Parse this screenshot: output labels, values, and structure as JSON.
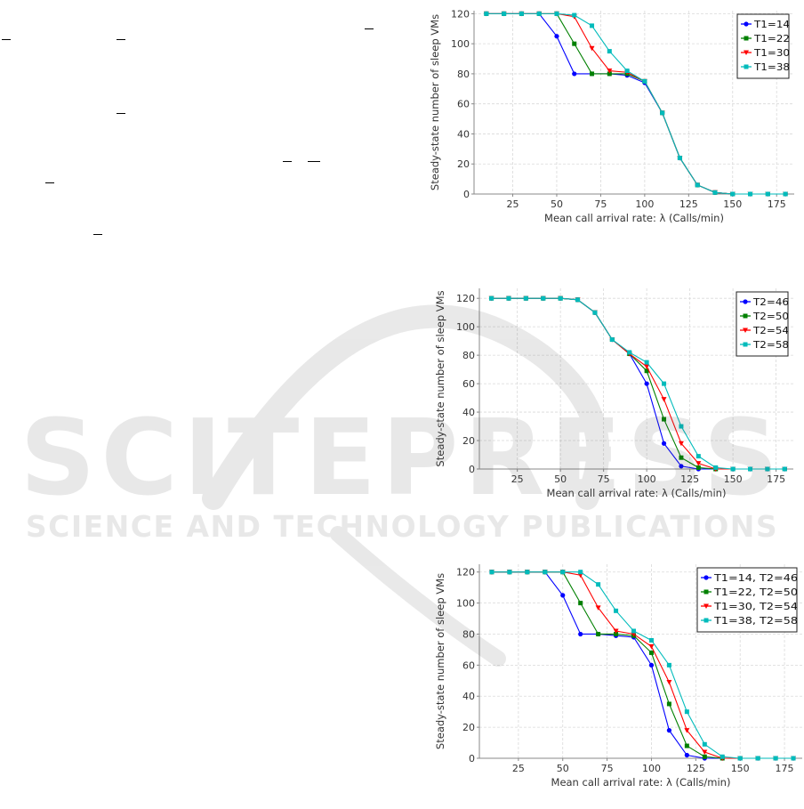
{
  "watermark": {
    "brand": "SCITEPRESS",
    "tagline": "SCIENCE AND TECHNOLOGY PUBLICATIONS"
  },
  "chart_data": [
    {
      "type": "line",
      "xlabel": "Mean call arrival rate: λ (Calls/min)",
      "ylabel": "Steady-state number of sleep VMs",
      "xlim": [
        3,
        185
      ],
      "ylim": [
        0,
        122
      ],
      "xticks": [
        25,
        50,
        75,
        100,
        125,
        150,
        175
      ],
      "yticks": [
        0,
        20,
        40,
        60,
        80,
        100,
        120
      ],
      "grid": true,
      "legend": "top-right",
      "x": [
        10,
        20,
        30,
        40,
        50,
        60,
        70,
        80,
        90,
        100,
        110,
        120,
        130,
        140,
        150,
        160,
        170,
        180
      ],
      "series": [
        {
          "name": "T1=14",
          "color": "#0000ff",
          "marker": "circle",
          "values": [
            120,
            120,
            120,
            120,
            105,
            80,
            80,
            80,
            79,
            74,
            54,
            24,
            6,
            1,
            0,
            0,
            0,
            0
          ]
        },
        {
          "name": "T1=22",
          "color": "#008000",
          "marker": "square",
          "values": [
            120,
            120,
            120,
            120,
            120,
            100,
            80,
            80,
            80,
            75,
            54,
            24,
            6,
            1,
            0,
            0,
            0,
            0
          ]
        },
        {
          "name": "T1=30",
          "color": "#ff0000",
          "marker": "triangle",
          "values": [
            120,
            120,
            120,
            120,
            120,
            118,
            97,
            82,
            81,
            75,
            54,
            24,
            6,
            1,
            0,
            0,
            0,
            0
          ]
        },
        {
          "name": "T1=38",
          "color": "#00bbbb",
          "marker": "square",
          "values": [
            120,
            120,
            120,
            120,
            120,
            119,
            112,
            95,
            82,
            75,
            54,
            24,
            6,
            1,
            0,
            0,
            0,
            0
          ]
        }
      ]
    },
    {
      "type": "line",
      "xlabel": "Mean call arrival rate: λ (Calls/min)",
      "ylabel": "Steady-state number of sleep VMs",
      "xlim": [
        3,
        185
      ],
      "ylim": [
        0,
        127
      ],
      "xticks": [
        25,
        50,
        75,
        100,
        125,
        150,
        175
      ],
      "yticks": [
        0,
        20,
        40,
        60,
        80,
        100,
        120
      ],
      "grid": true,
      "legend": "top-right",
      "x": [
        10,
        20,
        30,
        40,
        50,
        60,
        70,
        80,
        90,
        100,
        110,
        120,
        130,
        140,
        150,
        160,
        170,
        180
      ],
      "series": [
        {
          "name": "T2=46",
          "color": "#0000ff",
          "marker": "circle",
          "values": [
            120,
            120,
            120,
            120,
            120,
            119,
            110,
            91,
            81,
            60,
            18,
            2,
            0,
            0,
            0,
            0,
            0,
            0
          ]
        },
        {
          "name": "T2=50",
          "color": "#008000",
          "marker": "square",
          "values": [
            120,
            120,
            120,
            120,
            120,
            119,
            110,
            91,
            81,
            69,
            35,
            8,
            1,
            0,
            0,
            0,
            0,
            0
          ]
        },
        {
          "name": "T2=54",
          "color": "#ff0000",
          "marker": "triangle",
          "values": [
            120,
            120,
            120,
            120,
            120,
            119,
            110,
            91,
            81,
            72,
            49,
            18,
            4,
            0,
            0,
            0,
            0,
            0
          ]
        },
        {
          "name": "T2=58",
          "color": "#00bbbb",
          "marker": "square",
          "values": [
            120,
            120,
            120,
            120,
            120,
            119,
            110,
            91,
            82,
            75,
            60,
            30,
            9,
            1,
            0,
            0,
            0,
            0
          ]
        }
      ]
    },
    {
      "type": "line",
      "xlabel": "Mean call arrival rate: λ (Calls/min)",
      "ylabel": "Steady-state number of sleep VMs",
      "xlim": [
        3,
        185
      ],
      "ylim": [
        0,
        125
      ],
      "xticks": [
        25,
        50,
        75,
        100,
        125,
        150,
        175
      ],
      "yticks": [
        0,
        20,
        40,
        60,
        80,
        100,
        120
      ],
      "grid": true,
      "legend": "top-right",
      "x": [
        10,
        20,
        30,
        40,
        50,
        60,
        70,
        80,
        90,
        100,
        110,
        120,
        130,
        140,
        150,
        160,
        170,
        180
      ],
      "series": [
        {
          "name": "T1=14, T2=46",
          "color": "#0000ff",
          "marker": "circle",
          "values": [
            120,
            120,
            120,
            120,
            105,
            80,
            80,
            79,
            78,
            60,
            18,
            2,
            0,
            0,
            0,
            0,
            0,
            0
          ]
        },
        {
          "name": "T1=22, T2=50",
          "color": "#008000",
          "marker": "square",
          "values": [
            120,
            120,
            120,
            120,
            120,
            100,
            80,
            80,
            79,
            68,
            35,
            8,
            1,
            0,
            0,
            0,
            0,
            0
          ]
        },
        {
          "name": "T1=30, T2=54",
          "color": "#ff0000",
          "marker": "triangle",
          "values": [
            120,
            120,
            120,
            120,
            120,
            118,
            97,
            82,
            80,
            72,
            49,
            18,
            4,
            0,
            0,
            0,
            0,
            0
          ]
        },
        {
          "name": "T1=38, T2=58",
          "color": "#00bbbb",
          "marker": "square",
          "values": [
            120,
            120,
            120,
            120,
            120,
            120,
            112,
            95,
            82,
            76,
            60,
            30,
            9,
            1,
            0,
            0,
            0,
            0
          ]
        }
      ]
    }
  ]
}
